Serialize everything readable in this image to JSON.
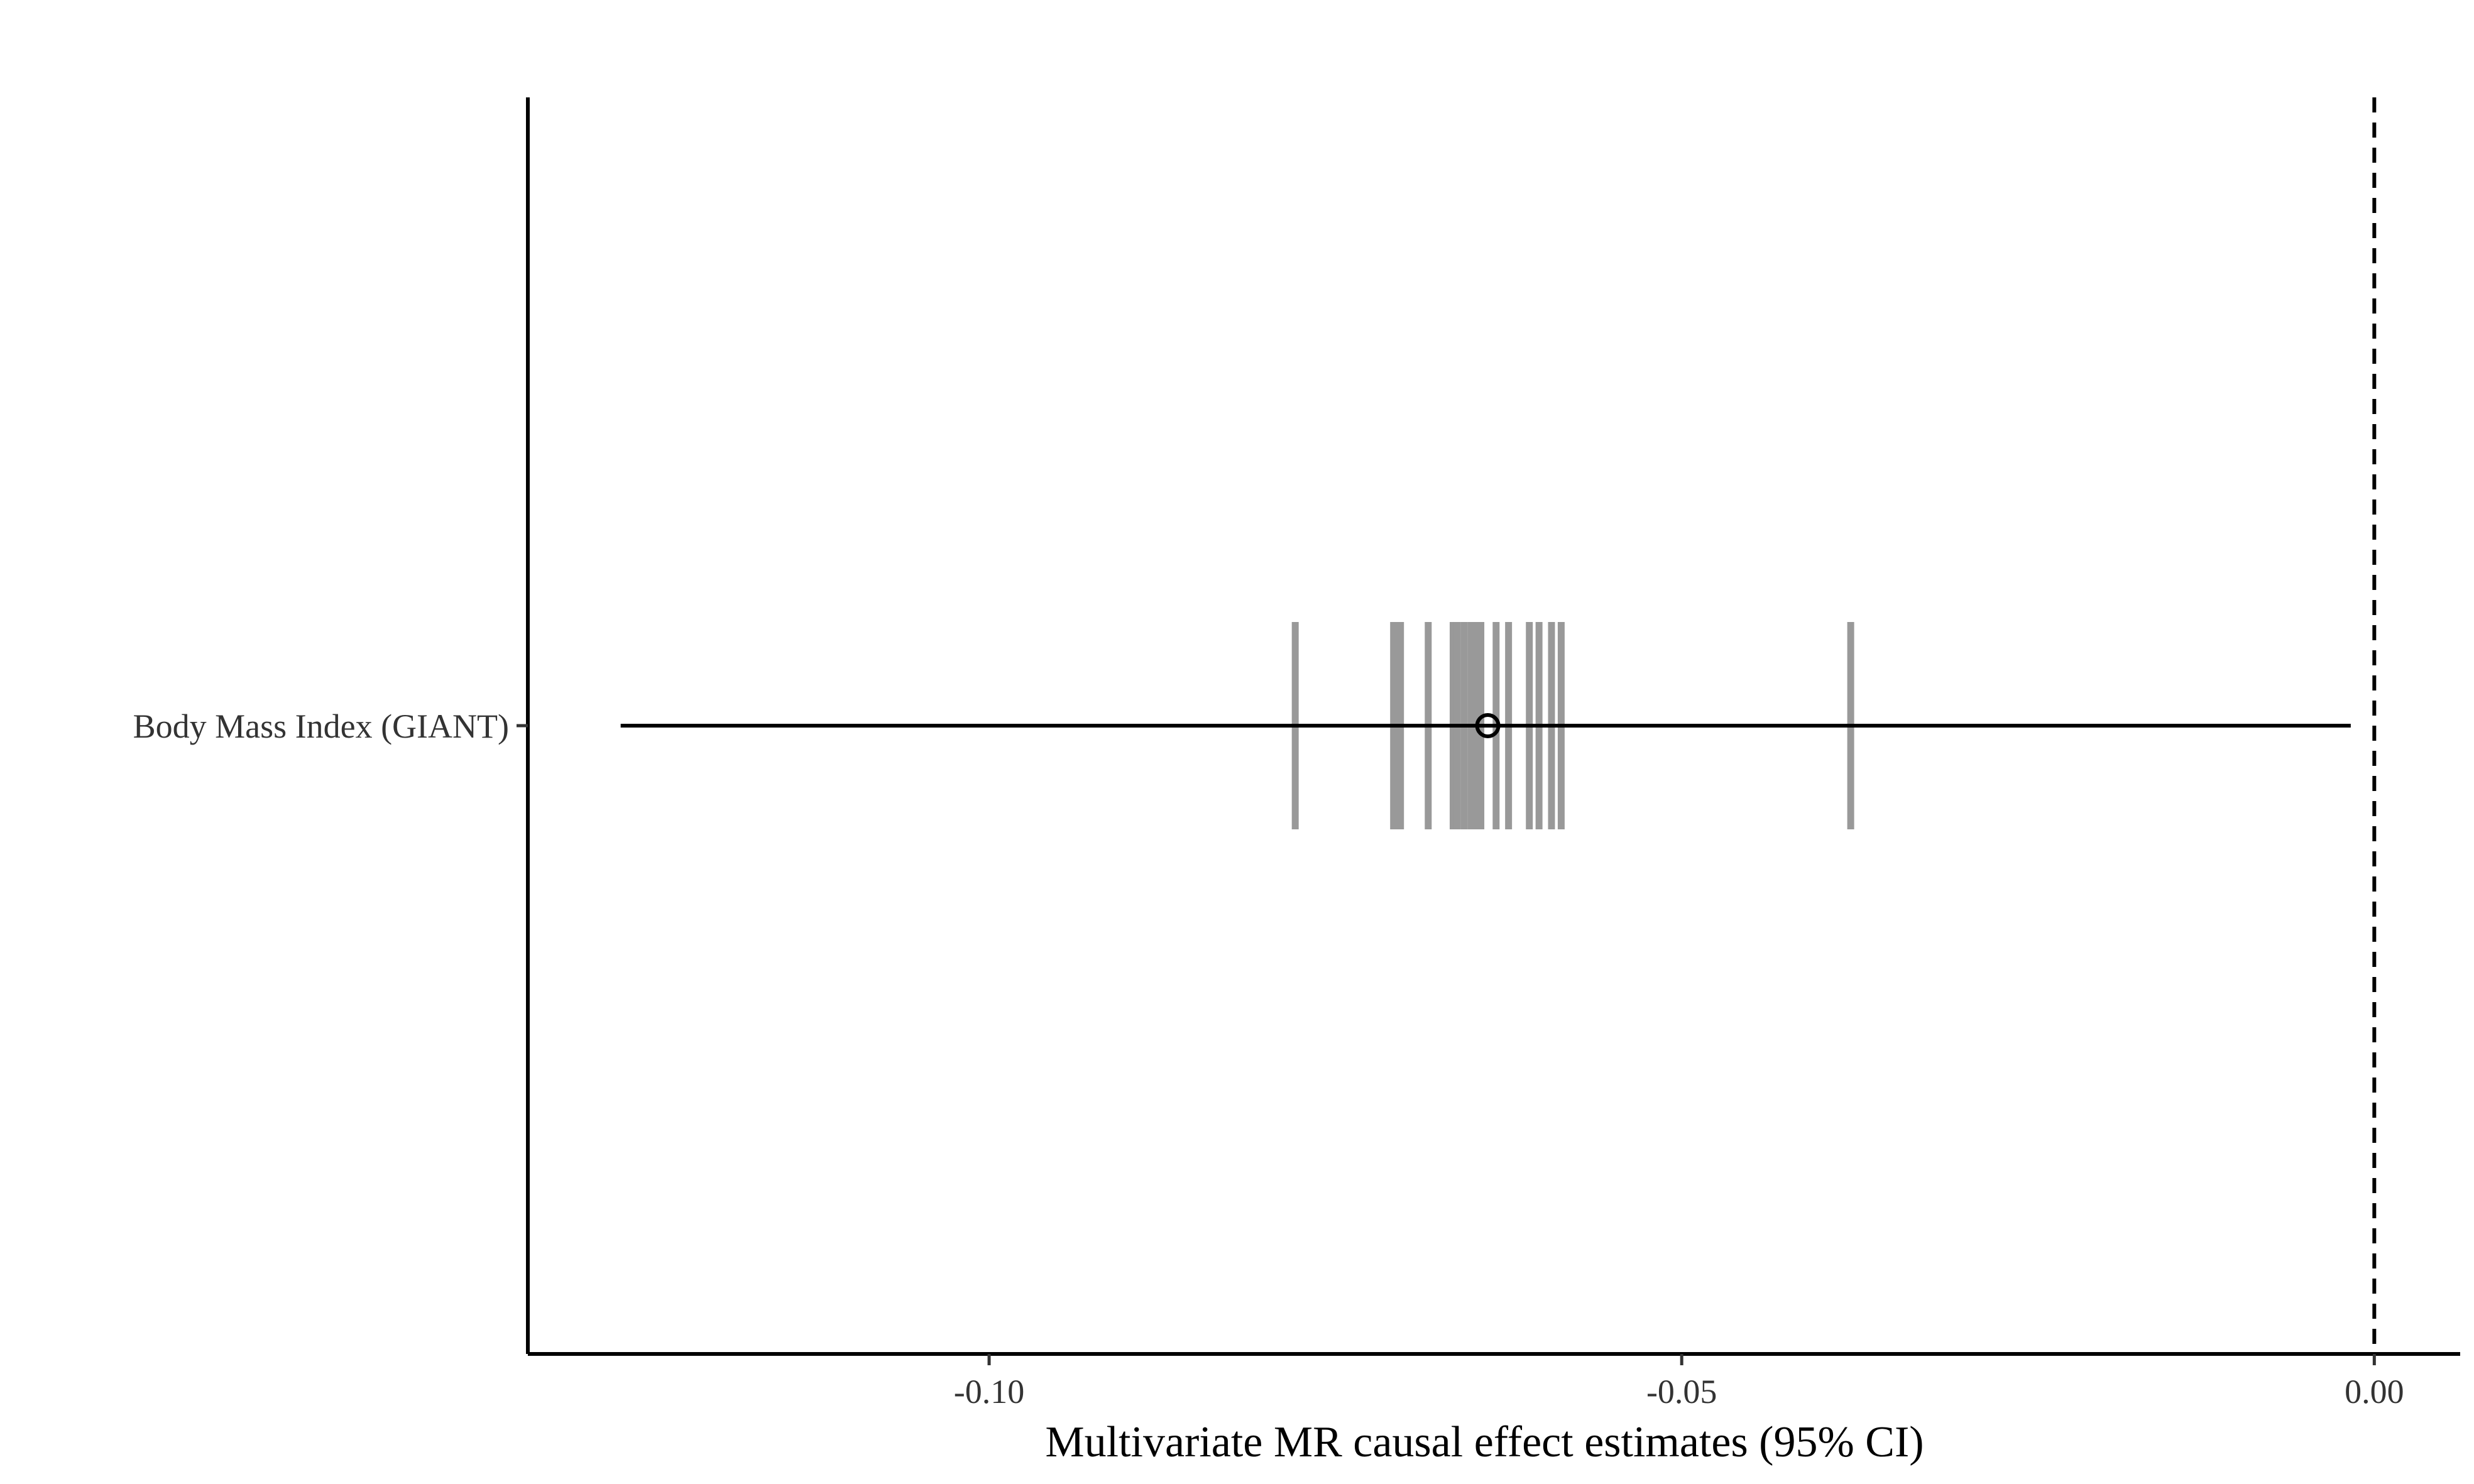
{
  "chart_data": {
    "type": "forest",
    "title": "",
    "xlabel": "Multivariate MR causal effect estimates (95% CI)",
    "ylabel": "",
    "xlim": [
      -0.1333,
      0.0062
    ],
    "x_ticks": [
      -0.1,
      -0.05,
      0.0
    ],
    "x_tick_labels": [
      "-0.10",
      "-0.05",
      "0.00"
    ],
    "reference_line": {
      "x": 0.0,
      "style": "dashed"
    },
    "grid": false,
    "legend": "none",
    "categories": [
      "Body Mass Index (GIANT)"
    ],
    "estimate": {
      "category": "Body Mass Index (GIANT)",
      "value": -0.064,
      "ci_low": -0.1266,
      "ci_high": -0.0017
    },
    "leave_one_out_estimates": [
      -0.0779,
      -0.0708,
      -0.0706,
      -0.0703,
      -0.0683,
      -0.0665,
      -0.0662,
      -0.0657,
      -0.0652,
      -0.0648,
      -0.0645,
      -0.0634,
      -0.0625,
      -0.061,
      -0.0603,
      -0.0594,
      -0.0587,
      -0.0378
    ],
    "colors": {
      "estimate": "#000000",
      "ci_line": "#000000",
      "leave_one_out": "#999999",
      "axis": "#000000",
      "reference_line": "#000000"
    }
  }
}
